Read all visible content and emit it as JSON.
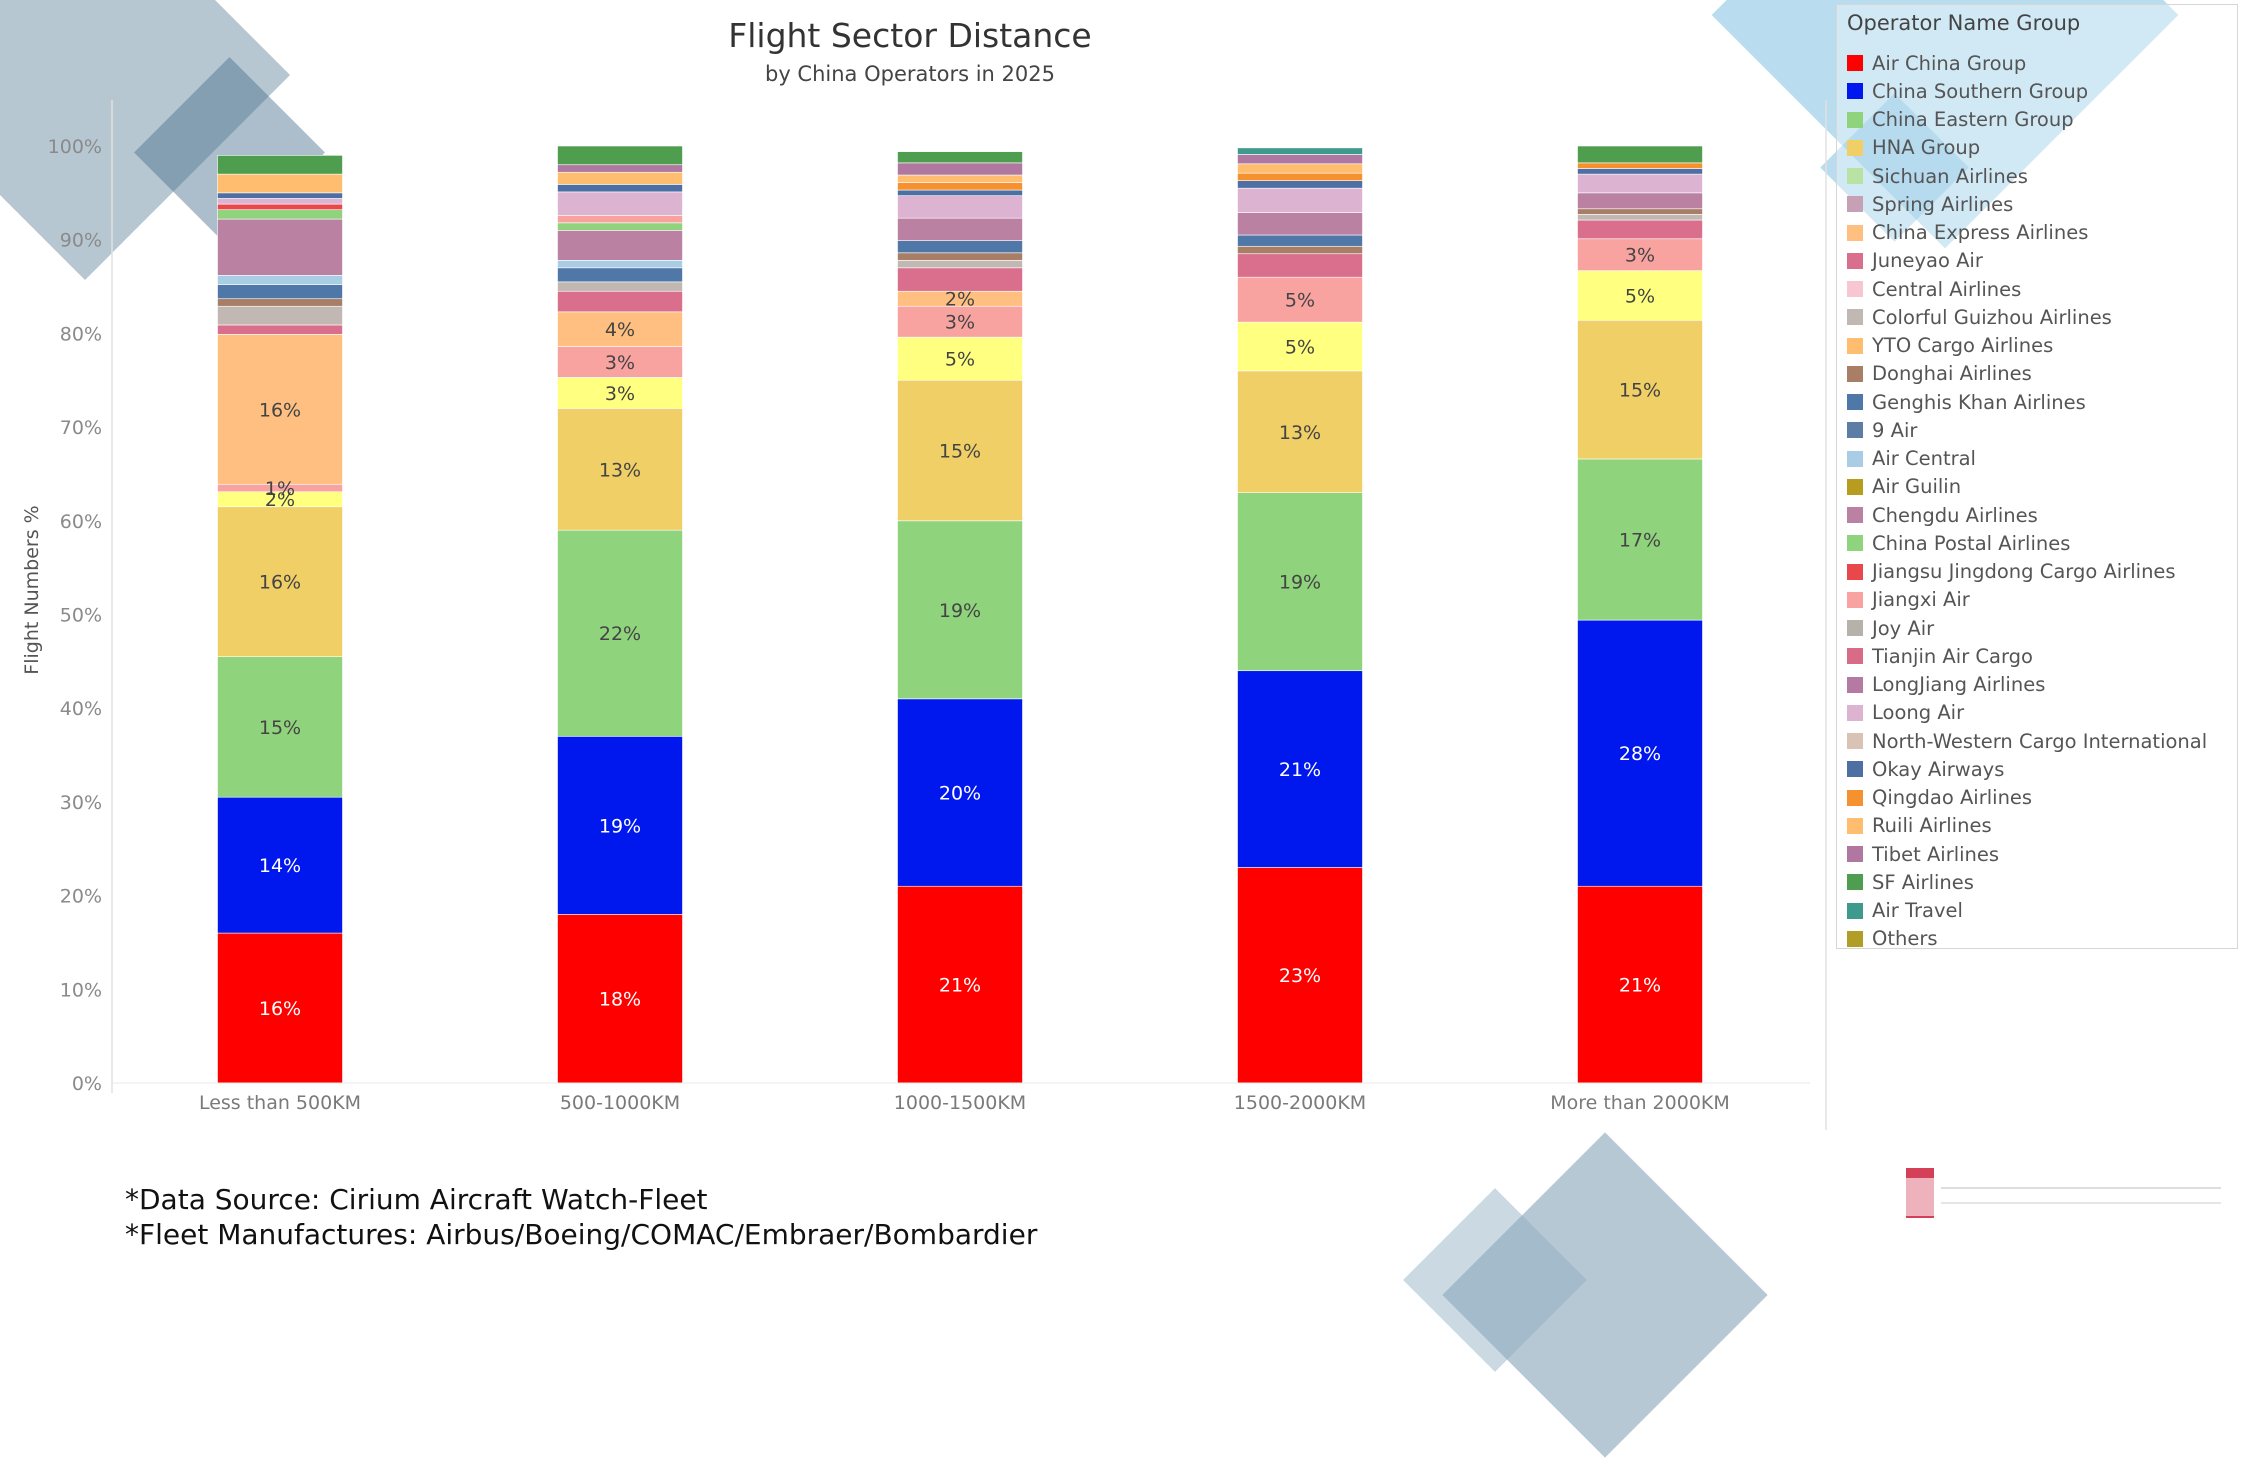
{
  "colors": {
    "Air China Group": "#ff0000",
    "China Southern Group": "#0018ee",
    "China Eastern Group": "#8fd47c",
    "HNA Group": "#f0cf66",
    "Sichuan Airlines": "#b9e2a4",
    "Spring Airlines": "#c6a0b4",
    "China Express Airlines": "#ffbf80",
    "Juneyao Air": "#d96f8c",
    "Central Airlines": "#f6c6d2",
    "Colorful Guizhou Airlines": "#c2b8b3",
    "YTO Cargo Airlines": "#ffbd70",
    "Donghai Airlines": "#a87e67",
    "Genghis Khan Airlines": "#4f77a7",
    "9 Air": "#5d7da6",
    "Air Central": "#a9cde4",
    "Air Guilin": "#b79d1f",
    "Chengdu Airlines": "#ba81a3",
    "China Postal Airlines": "#8fd47c",
    "Jiangsu Jingdong Cargo Airlines": "#e8474c",
    "Jiangxi Air": "#f9a3a0",
    "Joy Air": "#b6b2ab",
    "Tianjin Air Cargo": "#d86b85",
    "LongJiang Airlines": "#b57aa4",
    "Loong Air": "#dcb4d2",
    "North-Western Cargo International": "#d9c3b5",
    "Okay Airways": "#4e6fa4",
    "Qingdao Airlines": "#f5912f",
    "Ruili Airlines": "#ffbd70",
    "Tibet Airlines": "#b078a1",
    "SF Airlines": "#4f9e4f",
    "Air Travel": "#3d9a8d",
    "Others": "#b29d27",
    "Yellow band": "#ffff80",
    "Pink band": "#f9a3a0",
    "Orange band": "#ffbf80"
  },
  "chart_data": {
    "type": "bar",
    "stacked": true,
    "title": "Flight Sector Distance",
    "subtitle": "by China Operators in 2025",
    "xlabel": "",
    "ylabel": "Flight Numbers %",
    "ylim": [
      0,
      100
    ],
    "yticks": [
      "0%",
      "10%",
      "20%",
      "30%",
      "40%",
      "50%",
      "60%",
      "70%",
      "80%",
      "90%",
      "100%"
    ],
    "categories": [
      "Less than 500KM",
      "500-1000KM",
      "1000-1500KM",
      "1500-2000KM",
      "More than 2000KM"
    ],
    "stacks": [
      {
        "category": "Less than 500KM",
        "segments": [
          {
            "name": "Air China Group",
            "value": 16,
            "label": "16%"
          },
          {
            "name": "China Southern Group",
            "value": 14.5,
            "label": "14%"
          },
          {
            "name": "China Eastern Group",
            "value": 15,
            "label": "15%"
          },
          {
            "name": "HNA Group",
            "value": 16,
            "label": "16%"
          },
          {
            "name": "Yellow band",
            "value": 1.6,
            "label": "2%"
          },
          {
            "name": "Pink band",
            "value": 0.8,
            "label": "1%"
          },
          {
            "name": "China Express Airlines",
            "value": 16,
            "label": "16%"
          },
          {
            "name": "Juneyao Air",
            "value": 1,
            "label": ""
          },
          {
            "name": "Colorful Guizhou Airlines",
            "value": 2,
            "label": ""
          },
          {
            "name": "Donghai Airlines",
            "value": 0.8,
            "label": ""
          },
          {
            "name": "Genghis Khan Airlines",
            "value": 1.5,
            "label": ""
          },
          {
            "name": "Air Central",
            "value": 1,
            "label": ""
          },
          {
            "name": "Chengdu Airlines",
            "value": 6,
            "label": ""
          },
          {
            "name": "China Postal Airlines",
            "value": 1,
            "label": ""
          },
          {
            "name": "Jiangsu Jingdong Cargo Airlines",
            "value": 0.6,
            "label": ""
          },
          {
            "name": "Loong Air",
            "value": 0.6,
            "label": ""
          },
          {
            "name": "Okay Airways",
            "value": 0.6,
            "label": ""
          },
          {
            "name": "Ruili Airlines",
            "value": 2,
            "label": ""
          },
          {
            "name": "SF Airlines",
            "value": 2,
            "label": ""
          }
        ]
      },
      {
        "category": "500-1000KM",
        "segments": [
          {
            "name": "Air China Group",
            "value": 18,
            "label": "18%"
          },
          {
            "name": "China Southern Group",
            "value": 19,
            "label": "19%"
          },
          {
            "name": "China Eastern Group",
            "value": 22,
            "label": "22%"
          },
          {
            "name": "HNA Group",
            "value": 13,
            "label": "13%"
          },
          {
            "name": "Yellow band",
            "value": 3.3,
            "label": "3%"
          },
          {
            "name": "Pink band",
            "value": 3.3,
            "label": "3%"
          },
          {
            "name": "Orange band",
            "value": 3.7,
            "label": "4%"
          },
          {
            "name": "Juneyao Air",
            "value": 2.2,
            "label": ""
          },
          {
            "name": "Colorful Guizhou Airlines",
            "value": 1,
            "label": ""
          },
          {
            "name": "Genghis Khan Airlines",
            "value": 1.5,
            "label": ""
          },
          {
            "name": "Air Central",
            "value": 0.8,
            "label": ""
          },
          {
            "name": "Chengdu Airlines",
            "value": 3.2,
            "label": ""
          },
          {
            "name": "China Postal Airlines",
            "value": 0.8,
            "label": ""
          },
          {
            "name": "Jiangxi Air",
            "value": 0.8,
            "label": ""
          },
          {
            "name": "Loong Air",
            "value": 2.5,
            "label": ""
          },
          {
            "name": "Okay Airways",
            "value": 0.8,
            "label": ""
          },
          {
            "name": "Ruili Airlines",
            "value": 1.3,
            "label": ""
          },
          {
            "name": "Tibet Airlines",
            "value": 0.8,
            "label": ""
          },
          {
            "name": "SF Airlines",
            "value": 2,
            "label": ""
          }
        ]
      },
      {
        "category": "1000-1500KM",
        "segments": [
          {
            "name": "Air China Group",
            "value": 21,
            "label": "21%"
          },
          {
            "name": "China Southern Group",
            "value": 20,
            "label": "20%"
          },
          {
            "name": "China Eastern Group",
            "value": 19,
            "label": "19%"
          },
          {
            "name": "HNA Group",
            "value": 15,
            "label": "15%"
          },
          {
            "name": "Yellow band",
            "value": 4.6,
            "label": "5%"
          },
          {
            "name": "Pink band",
            "value": 3.3,
            "label": "3%"
          },
          {
            "name": "Orange band",
            "value": 1.6,
            "label": "2%"
          },
          {
            "name": "Juneyao Air",
            "value": 2.5,
            "label": ""
          },
          {
            "name": "Colorful Guizhou Airlines",
            "value": 0.8,
            "label": ""
          },
          {
            "name": "Donghai Airlines",
            "value": 0.8,
            "label": ""
          },
          {
            "name": "Genghis Khan Airlines",
            "value": 1.3,
            "label": ""
          },
          {
            "name": "Chengdu Airlines",
            "value": 2.4,
            "label": ""
          },
          {
            "name": "Loong Air",
            "value": 2.4,
            "label": ""
          },
          {
            "name": "Okay Airways",
            "value": 0.6,
            "label": ""
          },
          {
            "name": "Qingdao Airlines",
            "value": 0.8,
            "label": ""
          },
          {
            "name": "Ruili Airlines",
            "value": 0.8,
            "label": ""
          },
          {
            "name": "Tibet Airlines",
            "value": 1.3,
            "label": ""
          },
          {
            "name": "SF Airlines",
            "value": 1.2,
            "label": ""
          }
        ]
      },
      {
        "category": "1500-2000KM",
        "segments": [
          {
            "name": "Air China Group",
            "value": 23,
            "label": "23%"
          },
          {
            "name": "China Southern Group",
            "value": 21,
            "label": "21%"
          },
          {
            "name": "China Eastern Group",
            "value": 19,
            "label": "19%"
          },
          {
            "name": "HNA Group",
            "value": 13,
            "label": "13%"
          },
          {
            "name": "Yellow band",
            "value": 5.2,
            "label": "5%"
          },
          {
            "name": "Pink band",
            "value": 4.8,
            "label": "5%"
          },
          {
            "name": "Juneyao Air",
            "value": 2.5,
            "label": ""
          },
          {
            "name": "Donghai Airlines",
            "value": 0.8,
            "label": ""
          },
          {
            "name": "Genghis Khan Airlines",
            "value": 1.2,
            "label": ""
          },
          {
            "name": "Chengdu Airlines",
            "value": 2.4,
            "label": ""
          },
          {
            "name": "Loong Air",
            "value": 2.6,
            "label": ""
          },
          {
            "name": "Okay Airways",
            "value": 0.8,
            "label": ""
          },
          {
            "name": "Qingdao Airlines",
            "value": 0.8,
            "label": ""
          },
          {
            "name": "Ruili Airlines",
            "value": 1,
            "label": ""
          },
          {
            "name": "Tibet Airlines",
            "value": 1,
            "label": ""
          },
          {
            "name": "Air Travel",
            "value": 0.7,
            "label": ""
          }
        ]
      },
      {
        "category": "More than 2000KM",
        "segments": [
          {
            "name": "Air China Group",
            "value": 21,
            "label": "21%"
          },
          {
            "name": "China Southern Group",
            "value": 28.4,
            "label": "28%"
          },
          {
            "name": "China Eastern Group",
            "value": 17.2,
            "label": "17%"
          },
          {
            "name": "HNA Group",
            "value": 14.8,
            "label": "15%"
          },
          {
            "name": "Yellow band",
            "value": 5.3,
            "label": "5%"
          },
          {
            "name": "Pink band",
            "value": 3.4,
            "label": "3%"
          },
          {
            "name": "Juneyao Air",
            "value": 2,
            "label": ""
          },
          {
            "name": "Colorful Guizhou Airlines",
            "value": 0.6,
            "label": ""
          },
          {
            "name": "Donghai Airlines",
            "value": 0.6,
            "label": ""
          },
          {
            "name": "Chengdu Airlines",
            "value": 1.7,
            "label": ""
          },
          {
            "name": "Loong Air",
            "value": 2,
            "label": ""
          },
          {
            "name": "Okay Airways",
            "value": 0.6,
            "label": ""
          },
          {
            "name": "Qingdao Airlines",
            "value": 0.6,
            "label": ""
          },
          {
            "name": "SF Airlines",
            "value": 1.8,
            "label": ""
          }
        ]
      }
    ]
  },
  "legend": {
    "title": "Operator Name Group",
    "items": [
      "Air China Group",
      "China Southern Group",
      "China Eastern Group",
      "HNA Group",
      "Sichuan Airlines",
      "Spring Airlines",
      "China Express Airlines",
      "Juneyao Air",
      "Central Airlines",
      "Colorful Guizhou Airlines",
      "YTO Cargo Airlines",
      "Donghai Airlines",
      "Genghis Khan Airlines",
      "9 Air",
      "Air Central",
      "Air Guilin",
      "Chengdu Airlines",
      "China Postal Airlines",
      "Jiangsu Jingdong Cargo Airlines",
      "Jiangxi Air",
      "Joy Air",
      "Tianjin Air Cargo",
      "LongJiang Airlines",
      "Loong Air",
      "North-Western Cargo International",
      "Okay Airways",
      "Qingdao Airlines",
      "Ruili Airlines",
      "Tibet Airlines",
      "SF Airlines",
      "Air Travel",
      "Others"
    ]
  },
  "footnotes": {
    "source": "*Data Source: Cirium Aircraft Watch-Fleet",
    "manufacturers": "*Fleet Manufactures: Airbus/Boeing/COMAC/Embraer/Bombardier"
  }
}
